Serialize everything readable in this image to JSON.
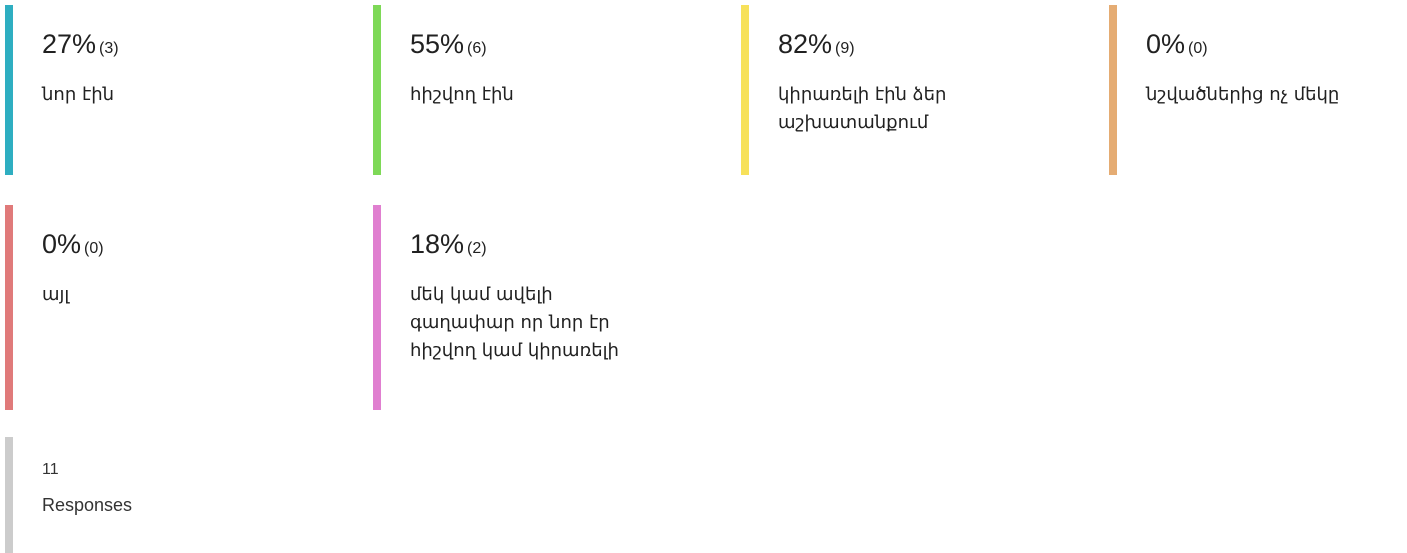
{
  "items": [
    {
      "percent": "27%",
      "count": "(3)",
      "label": [
        "նոր էին"
      ],
      "color": "#2eaec1"
    },
    {
      "percent": "55%",
      "count": "(6)",
      "label": [
        "հիշվող էին"
      ],
      "color": "#7ed957"
    },
    {
      "percent": "82%",
      "count": "(9)",
      "label": [
        "կիրառելի էին ձեր",
        "աշխատանքում"
      ],
      "color": "#f7e15a"
    },
    {
      "percent": "0%",
      "count": "(0)",
      "label": [
        "նշվածներից ոչ մեկը"
      ],
      "color": "#e5ac73"
    },
    {
      "percent": "0%",
      "count": "(0)",
      "label": [
        "այլ"
      ],
      "color": "#e07a7a"
    },
    {
      "percent": "18%",
      "count": "(2)",
      "label": [
        "մեկ կամ ավելի",
        "գաղափար որ նոր էր",
        "հիշվող կամ կիրառելի"
      ],
      "color": "#e07fd0"
    }
  ],
  "responses": {
    "count": "11",
    "label": "Responses",
    "color": "#cccccc"
  }
}
